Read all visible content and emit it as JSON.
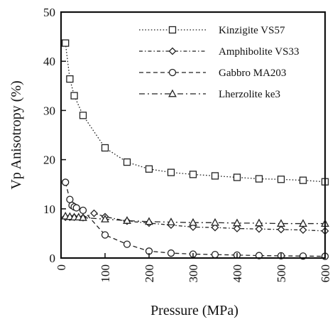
{
  "chart_data": {
    "type": "line",
    "xlabel": "Pressure (MPa)",
    "ylabel": "Vp Anisotropy (%)",
    "xlim": [
      0,
      600
    ],
    "ylim": [
      0,
      50
    ],
    "xticks": [
      0,
      100,
      200,
      300,
      400,
      500,
      600
    ],
    "yticks": [
      0,
      10,
      20,
      30,
      40,
      50
    ],
    "grid": false,
    "legend_position": "top-right",
    "series": [
      {
        "name": "Kinzigite VS57",
        "marker": "square",
        "dash": "dotted",
        "x": [
          10,
          20,
          30,
          50,
          100,
          150,
          200,
          250,
          300,
          350,
          400,
          450,
          500,
          550,
          600
        ],
        "y": [
          43.7,
          36.4,
          33.0,
          29.0,
          22.4,
          19.5,
          18.1,
          17.4,
          17.0,
          16.7,
          16.4,
          16.1,
          16.0,
          15.8,
          15.5
        ]
      },
      {
        "name": "Amphibolite VS33",
        "marker": "diamond",
        "dash": "short-dash-dot",
        "x": [
          10,
          20,
          30,
          50,
          75,
          100,
          150,
          200,
          250,
          300,
          350,
          400,
          450,
          500,
          550,
          600
        ],
        "y": [
          8.3,
          8.3,
          8.3,
          8.2,
          9.1,
          8.4,
          7.5,
          7.1,
          6.7,
          6.3,
          6.2,
          6.0,
          5.9,
          5.8,
          5.7,
          5.5
        ]
      },
      {
        "name": "Gabbro MA203",
        "marker": "circle",
        "dash": "dashed",
        "x": [
          10,
          20,
          25,
          30,
          35,
          50,
          100,
          150,
          200,
          250,
          300,
          350,
          400,
          450,
          500,
          550,
          600
        ],
        "y": [
          15.4,
          11.9,
          10.7,
          10.4,
          10.2,
          9.7,
          4.7,
          2.8,
          1.4,
          1.0,
          0.8,
          0.7,
          0.6,
          0.5,
          0.45,
          0.4,
          0.35
        ]
      },
      {
        "name": "Lherzolite ke3",
        "marker": "triangle",
        "dash": "dash-dot",
        "x": [
          10,
          20,
          30,
          40,
          50,
          100,
          150,
          200,
          250,
          300,
          350,
          400,
          450,
          500,
          550,
          600
        ],
        "y": [
          8.5,
          8.4,
          8.3,
          8.3,
          8.2,
          7.9,
          7.6,
          7.4,
          7.3,
          7.2,
          7.2,
          7.1,
          7.1,
          7.0,
          7.0,
          7.0
        ]
      }
    ]
  }
}
